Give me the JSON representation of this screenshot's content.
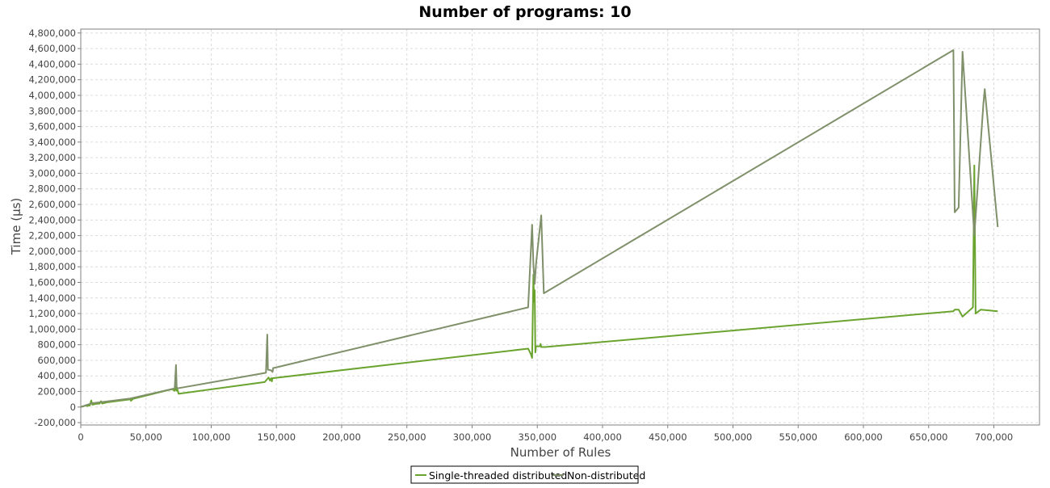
{
  "chart_data": {
    "type": "line",
    "title": "Number of programs: 10",
    "xlabel": "Number of Rules",
    "ylabel": "Time (µs)",
    "xlim": [
      0,
      735000
    ],
    "ylim": [
      -230000,
      4850000
    ],
    "grid": true,
    "legend_position": "bottom-center",
    "x_ticks": [
      0,
      50000,
      100000,
      150000,
      200000,
      250000,
      300000,
      350000,
      400000,
      450000,
      500000,
      550000,
      600000,
      650000,
      700000
    ],
    "x_tick_labels": [
      "0",
      "50,000",
      "100,000",
      "150,000",
      "200,000",
      "250,000",
      "300,000",
      "350,000",
      "400,000",
      "450,000",
      "500,000",
      "550,000",
      "600,000",
      "650,000",
      "700,000"
    ],
    "y_ticks": [
      -200000,
      0,
      200000,
      400000,
      600000,
      800000,
      1000000,
      1200000,
      1400000,
      1600000,
      1800000,
      2000000,
      2200000,
      2400000,
      2600000,
      2800000,
      3000000,
      3200000,
      3400000,
      3600000,
      3800000,
      4000000,
      4200000,
      4400000,
      4600000,
      4800000
    ],
    "y_tick_labels": [
      "-200,000",
      "0",
      "200,000",
      "400,000",
      "600,000",
      "800,000",
      "1,000,000",
      "1,200,000",
      "1,400,000",
      "1,600,000",
      "1,800,000",
      "2,000,000",
      "2,200,000",
      "2,400,000",
      "2,600,000",
      "2,800,000",
      "3,000,000",
      "3,200,000",
      "3,400,000",
      "3,600,000",
      "3,800,000",
      "4,000,000",
      "4,200,000",
      "4,400,000",
      "4,600,000",
      "4,800,000"
    ],
    "series": [
      {
        "name": "Single-threaded distributed",
        "color": "#6aa42f",
        "points": [
          [
            0,
            5000
          ],
          [
            2000,
            10000
          ],
          [
            3500,
            20000
          ],
          [
            5000,
            15000
          ],
          [
            7000,
            20000
          ],
          [
            8000,
            85000
          ],
          [
            9000,
            30000
          ],
          [
            11000,
            40000
          ],
          [
            14500,
            45000
          ],
          [
            15500,
            75000
          ],
          [
            16500,
            45000
          ],
          [
            20000,
            60000
          ],
          [
            38000,
            100000
          ],
          [
            38500,
            80000
          ],
          [
            40000,
            105000
          ],
          [
            70000,
            230000
          ],
          [
            72000,
            210000
          ],
          [
            72500,
            270000
          ],
          [
            73500,
            210000
          ],
          [
            74000,
            230000
          ],
          [
            75000,
            170000
          ],
          [
            141000,
            320000
          ],
          [
            143000,
            360000
          ],
          [
            144000,
            380000
          ],
          [
            145000,
            340000
          ],
          [
            146000,
            370000
          ],
          [
            146500,
            330000
          ],
          [
            147000,
            370000
          ],
          [
            343000,
            750000
          ],
          [
            345000,
            680000
          ],
          [
            346000,
            630000
          ],
          [
            347000,
            1700000
          ],
          [
            347500,
            1350000
          ],
          [
            348000,
            1500000
          ],
          [
            348500,
            700000
          ],
          [
            349000,
            780000
          ],
          [
            352000,
            780000
          ],
          [
            352500,
            810000
          ],
          [
            353000,
            770000
          ],
          [
            356000,
            770000
          ],
          [
            669000,
            1230000
          ],
          [
            670000,
            1250000
          ],
          [
            673000,
            1250000
          ],
          [
            676000,
            1160000
          ],
          [
            684000,
            1280000
          ],
          [
            685000,
            3100000
          ],
          [
            686000,
            1200000
          ],
          [
            690000,
            1250000
          ],
          [
            703000,
            1230000
          ]
        ]
      },
      {
        "name": "Non-distributed",
        "color": "#80906a",
        "points": [
          [
            0,
            0
          ],
          [
            5000,
            30000
          ],
          [
            9000,
            50000
          ],
          [
            38000,
            110000
          ],
          [
            72000,
            240000
          ],
          [
            73000,
            540000
          ],
          [
            73500,
            260000
          ],
          [
            74000,
            240000
          ],
          [
            142000,
            440000
          ],
          [
            143000,
            930000
          ],
          [
            143500,
            480000
          ],
          [
            146000,
            470000
          ],
          [
            147000,
            450000
          ],
          [
            147500,
            500000
          ],
          [
            343000,
            1280000
          ],
          [
            346000,
            2340000
          ],
          [
            347000,
            1830000
          ],
          [
            348000,
            1580000
          ],
          [
            349000,
            1830000
          ],
          [
            353000,
            2460000
          ],
          [
            355000,
            1460000
          ],
          [
            669000,
            4580000
          ],
          [
            670000,
            2500000
          ],
          [
            673000,
            2560000
          ],
          [
            676000,
            4560000
          ],
          [
            685000,
            2200000
          ],
          [
            692000,
            3900000
          ],
          [
            693000,
            4080000
          ],
          [
            703000,
            2310000
          ]
        ]
      }
    ]
  }
}
